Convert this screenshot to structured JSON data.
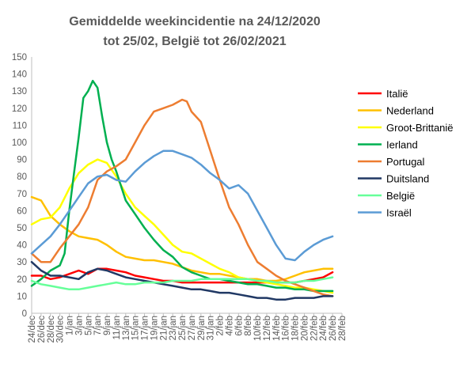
{
  "chart_data": {
    "type": "line",
    "title_line1": "Gemiddelde weekincidentie  na 24/12/2020",
    "title_line2": "tot 25/02, België tot 26/02/2021",
    "xlabel": "",
    "ylabel": "",
    "ylim": [
      0,
      150
    ],
    "ytick_step": 10,
    "grid": false,
    "legend_position": "right",
    "x_tick_labels": [
      "24/dec",
      "26/dec",
      "28/dec",
      "30/dec",
      "1/jan",
      "3/jan",
      "5/jan",
      "7/jan",
      "9/jan",
      "11/jan",
      "13/jan",
      "15/jan",
      "17/jan",
      "19/jan",
      "21/jan",
      "23/jan",
      "25/jan",
      "27/jan",
      "29/jan",
      "31/jan",
      "2/feb",
      "4/feb",
      "6/feb",
      "8/feb",
      "10/feb",
      "12/feb",
      "14/feb",
      "16/feb",
      "18/feb",
      "20/feb",
      "22/feb",
      "24/feb",
      "26/feb",
      "28/feb"
    ],
    "series": [
      {
        "name": "Italië",
        "color": "#ff0000",
        "x": [
          0,
          2,
          4,
          6,
          8,
          10,
          12,
          14,
          16,
          18,
          20,
          22,
          24,
          26,
          28,
          30,
          32,
          34,
          36,
          38,
          40,
          42,
          44,
          46,
          48,
          50,
          52,
          54,
          56,
          58,
          60,
          62,
          64
        ],
        "values": [
          22,
          22,
          20,
          21,
          23,
          25,
          23,
          26,
          26,
          25,
          24,
          22,
          21,
          20,
          19,
          19,
          18,
          18,
          18,
          18,
          18,
          18,
          18,
          18,
          18,
          18,
          18,
          18,
          18,
          19,
          20,
          21,
          24
        ]
      },
      {
        "name": "Nederland",
        "color": "#ffc000",
        "x": [
          0,
          2,
          4,
          6,
          8,
          10,
          12,
          14,
          16,
          18,
          20,
          22,
          24,
          26,
          28,
          30,
          32,
          34,
          36,
          38,
          40,
          42,
          44,
          46,
          48,
          50,
          52,
          54,
          56,
          58,
          60,
          62,
          64
        ],
        "values": [
          68,
          66,
          57,
          52,
          48,
          45,
          44,
          43,
          40,
          36,
          33,
          32,
          31,
          31,
          30,
          29,
          27,
          25,
          24,
          23,
          23,
          22,
          21,
          20,
          20,
          19,
          19,
          20,
          22,
          24,
          25,
          26,
          26
        ]
      },
      {
        "name": "Groot-Brittanië",
        "color": "#ffff00",
        "x": [
          0,
          2,
          4,
          6,
          8,
          10,
          12,
          14,
          16,
          18,
          20,
          22,
          24,
          26,
          28,
          30,
          32,
          34,
          36,
          38,
          40,
          42,
          44,
          46,
          48,
          50,
          52,
          54,
          56,
          58,
          60,
          62,
          64
        ],
        "values": [
          52,
          55,
          56,
          62,
          73,
          82,
          87,
          90,
          88,
          80,
          70,
          62,
          57,
          52,
          46,
          40,
          36,
          35,
          32,
          29,
          26,
          24,
          21,
          20,
          19,
          18,
          17,
          16,
          15,
          15,
          14,
          13,
          12
        ]
      },
      {
        "name": "Ierland",
        "color": "#00b050",
        "x": [
          0,
          2,
          4,
          6,
          7,
          8,
          9,
          10,
          11,
          12,
          13,
          14,
          15,
          16,
          17,
          18,
          20,
          22,
          24,
          26,
          28,
          30,
          32,
          34,
          36,
          38,
          40,
          42,
          44,
          46,
          48,
          50,
          52,
          54,
          56,
          58,
          60,
          62,
          64
        ],
        "values": [
          16,
          20,
          25,
          28,
          35,
          60,
          82,
          103,
          126,
          130,
          136,
          132,
          115,
          100,
          90,
          83,
          66,
          58,
          50,
          43,
          37,
          33,
          27,
          24,
          22,
          20,
          20,
          19,
          18,
          17,
          17,
          16,
          15,
          15,
          14,
          14,
          13,
          13,
          13
        ]
      },
      {
        "name": "Portugal",
        "color": "#ed7d31",
        "x": [
          0,
          2,
          4,
          6,
          8,
          10,
          12,
          14,
          16,
          18,
          20,
          22,
          24,
          26,
          28,
          30,
          32,
          33,
          34,
          36,
          38,
          40,
          42,
          44,
          46,
          48,
          50,
          52,
          54,
          56,
          58,
          60,
          62,
          64
        ],
        "values": [
          35,
          30,
          30,
          38,
          45,
          52,
          62,
          78,
          83,
          86,
          90,
          100,
          110,
          118,
          120,
          122,
          125,
          124,
          118,
          112,
          95,
          78,
          62,
          52,
          40,
          30,
          26,
          22,
          19,
          17,
          15,
          13,
          11,
          10
        ]
      },
      {
        "name": "Duitsland",
        "color": "#203864",
        "x": [
          0,
          2,
          4,
          6,
          8,
          10,
          12,
          14,
          16,
          18,
          20,
          22,
          24,
          26,
          28,
          30,
          32,
          34,
          36,
          38,
          40,
          42,
          44,
          46,
          48,
          50,
          52,
          54,
          56,
          58,
          60,
          62,
          64
        ],
        "values": [
          30,
          25,
          22,
          22,
          21,
          20,
          24,
          26,
          25,
          23,
          21,
          20,
          19,
          18,
          17,
          16,
          15,
          14,
          14,
          13,
          12,
          12,
          11,
          10,
          9,
          9,
          8,
          8,
          9,
          9,
          9,
          10,
          10
        ]
      },
      {
        "name": "België",
        "color": "#66ff99",
        "x": [
          0,
          2,
          4,
          6,
          8,
          10,
          12,
          14,
          16,
          18,
          20,
          22,
          24,
          26,
          28,
          30,
          32,
          34,
          36,
          38,
          40,
          42,
          44,
          46,
          48,
          50,
          52,
          54,
          56,
          58,
          60,
          62,
          64
        ],
        "values": [
          19,
          17,
          16,
          15,
          14,
          14,
          15,
          16,
          17,
          18,
          17,
          17,
          18,
          18,
          18,
          19,
          19,
          19,
          20,
          20,
          20,
          20,
          20,
          20,
          19,
          19,
          18,
          18,
          18,
          19,
          19,
          20,
          21
        ]
      },
      {
        "name": "Israël",
        "color": "#5b9bd5",
        "x": [
          0,
          2,
          4,
          6,
          8,
          10,
          12,
          14,
          16,
          18,
          20,
          22,
          24,
          26,
          28,
          30,
          32,
          34,
          36,
          38,
          40,
          42,
          44,
          46,
          48,
          50,
          52,
          54,
          56,
          58,
          60,
          62,
          64
        ],
        "values": [
          35,
          40,
          45,
          52,
          60,
          68,
          76,
          80,
          81,
          78,
          77,
          83,
          88,
          92,
          95,
          95,
          93,
          91,
          87,
          82,
          78,
          73,
          75,
          70,
          60,
          50,
          40,
          32,
          31,
          36,
          40,
          43,
          45
        ]
      }
    ]
  }
}
